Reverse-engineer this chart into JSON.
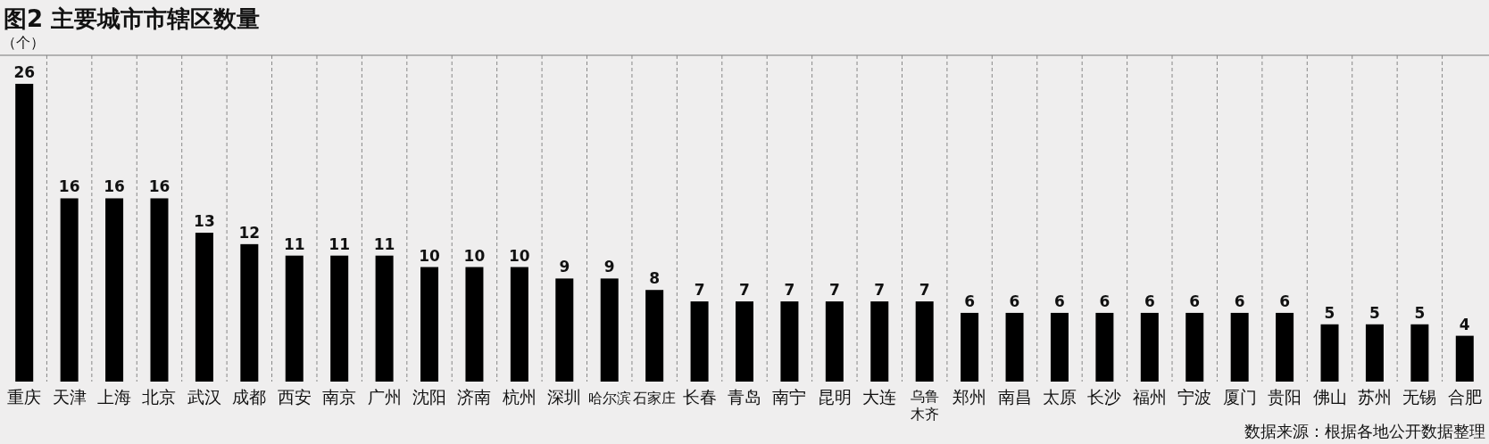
{
  "chart_data": {
    "type": "bar",
    "title": "图2 主要城市市辖区数量",
    "ylabel": "（个）",
    "categories": [
      "重庆",
      "天津",
      "上海",
      "北京",
      "武汉",
      "成都",
      "西安",
      "南京",
      "广州",
      "沈阳",
      "济南",
      "杭州",
      "深圳",
      "哈尔滨",
      "石家庄",
      "长春",
      "青岛",
      "南宁",
      "昆明",
      "大连",
      "乌鲁木齐",
      "郑州",
      "南昌",
      "太原",
      "长沙",
      "福州",
      "宁波",
      "厦门",
      "贵阳",
      "佛山",
      "苏州",
      "无锡",
      "合肥"
    ],
    "values": [
      26,
      16,
      16,
      16,
      13,
      12,
      11,
      11,
      11,
      10,
      10,
      10,
      9,
      9,
      8,
      7,
      7,
      7,
      7,
      7,
      7,
      6,
      6,
      6,
      6,
      6,
      6,
      6,
      6,
      5,
      5,
      5,
      4
    ],
    "color": "#000000",
    "data_labels": true,
    "grid": "x",
    "annotations": [
      "数据来源：根据各地公开数据整理"
    ]
  }
}
